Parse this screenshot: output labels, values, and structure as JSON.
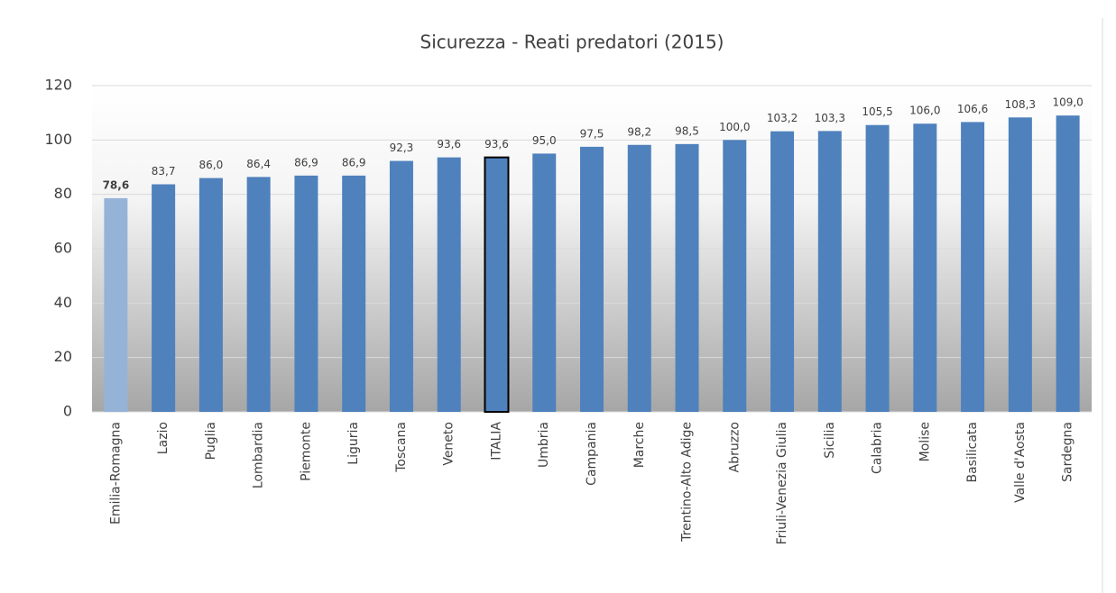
{
  "chart_data": {
    "type": "bar",
    "title": "Sicurezza - Reati predatori  (2015)",
    "categories": [
      "Emilia-Romagna",
      "Lazio",
      "Puglia",
      "Lombardia",
      "Piemonte",
      "Liguria",
      "Toscana",
      "Veneto",
      "ITALIA",
      "Umbria",
      "Campania",
      "Marche",
      "Trentino-Alto Adige",
      "Abruzzo",
      "Friuli-Venezia Giulia",
      "Sicilia",
      "Calabria",
      "Molise",
      "Basilicata",
      "Valle d'Aosta",
      "Sardegna"
    ],
    "values": [
      78.6,
      83.7,
      86.0,
      86.4,
      86.9,
      86.9,
      92.3,
      93.6,
      93.6,
      95.0,
      97.5,
      98.2,
      98.5,
      100.0,
      103.2,
      103.3,
      105.5,
      106.0,
      106.6,
      108.3,
      109.0
    ],
    "value_labels": [
      "78,6",
      "83,7",
      "86,0",
      "86,4",
      "86,9",
      "86,9",
      "92,3",
      "93,6",
      "93,6",
      "95,0",
      "97,5",
      "98,2",
      "98,5",
      "100,0",
      "103,2",
      "103,3",
      "105,5",
      "106,0",
      "106,6",
      "108,3",
      "109,0"
    ],
    "colors": [
      "#95b3d7",
      "#4f81bd",
      "#4f81bd",
      "#4f81bd",
      "#4f81bd",
      "#4f81bd",
      "#4f81bd",
      "#4f81bd",
      "#4f81bd",
      "#4f81bd",
      "#4f81bd",
      "#4f81bd",
      "#4f81bd",
      "#4f81bd",
      "#4f81bd",
      "#4f81bd",
      "#4f81bd",
      "#4f81bd",
      "#4f81bd",
      "#4f81bd",
      "#4f81bd"
    ],
    "edgecolors": [
      null,
      null,
      null,
      null,
      null,
      null,
      null,
      null,
      "#000000",
      null,
      null,
      null,
      null,
      null,
      null,
      null,
      null,
      null,
      null,
      null,
      null
    ],
    "ylim": [
      0,
      120
    ],
    "yticks": [
      0,
      20,
      40,
      60,
      80,
      100,
      120
    ],
    "grid": true
  }
}
